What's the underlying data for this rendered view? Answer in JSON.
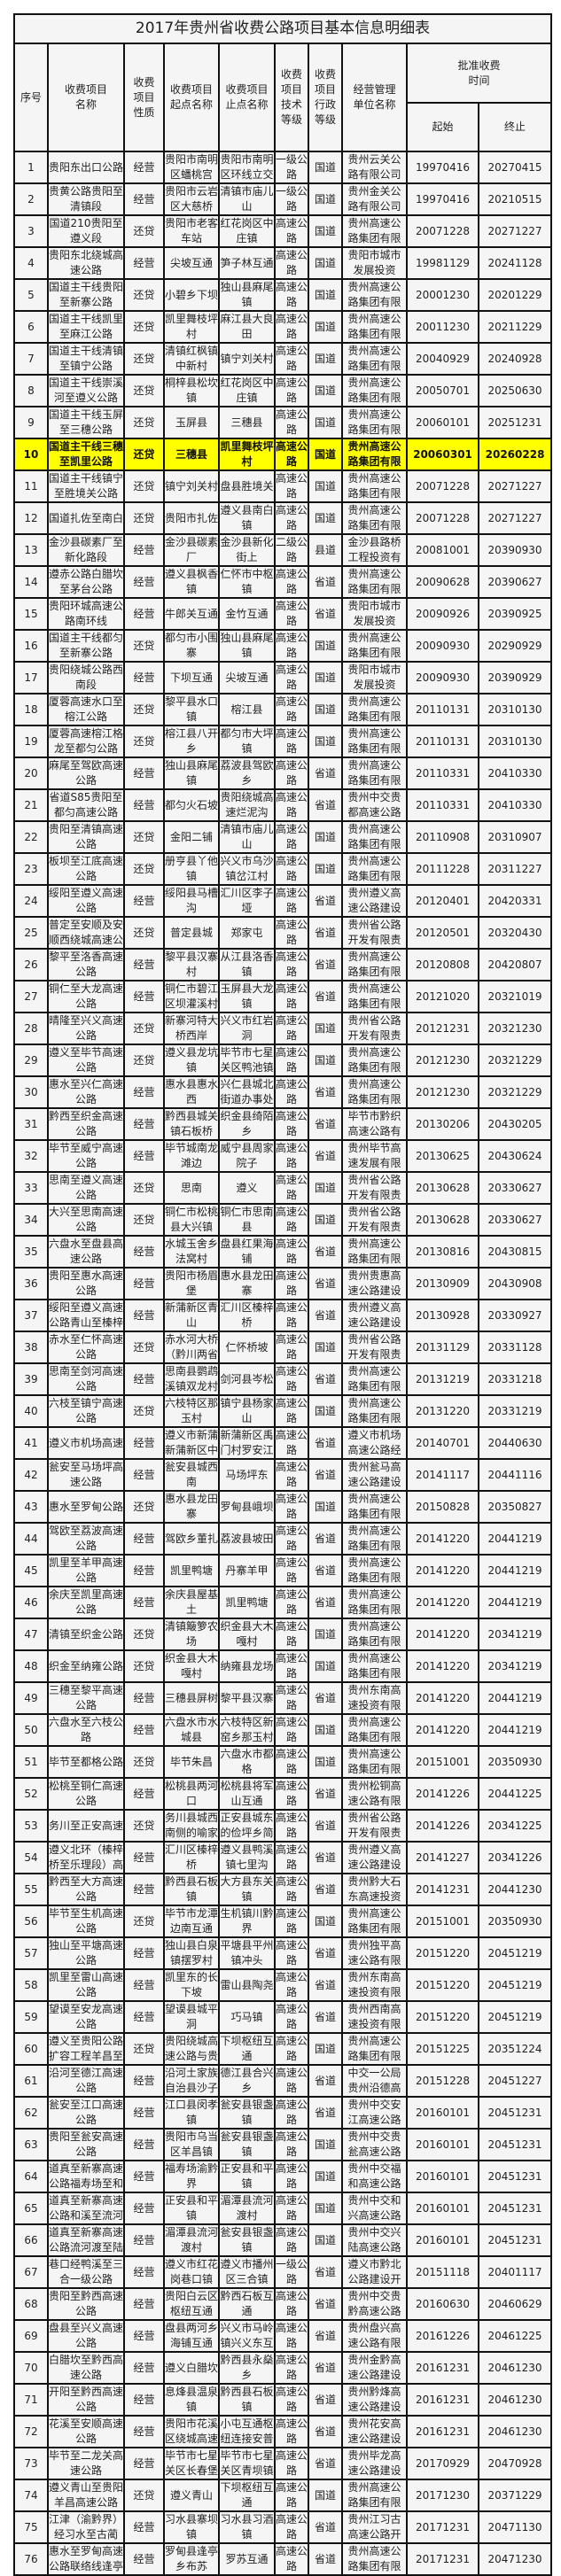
{
  "title": "2017年贵州省收费公路项目基本信息明细表",
  "headers": {
    "no": "序号",
    "name": "收费项目\n名称",
    "nature": "收费\n项目\n性质",
    "start": "收费项目\n起点名称",
    "end": "收费项目\n止点名称",
    "grade": "收费\n项目\n技术\n等级",
    "admin": "收费\n项目\n行政\n等级",
    "operator": "经营管理\n单位名称",
    "period": "批准收费\n时间",
    "period_start": "起始",
    "period_end": "终止"
  },
  "highlight_color": "#ffff00",
  "highlighted_row": "10",
  "rows": [
    [
      "1",
      "贵阳东出口公路",
      "经营",
      "贵阳市南明区蟠桃宫",
      "贵阳市南明区环线立交",
      "一级公路",
      "国道",
      "贵州云关公路有限公司",
      "19970416",
      "20270415"
    ],
    [
      "2",
      "贵黄公路贵阳至清镇段",
      "经营",
      "贵阳市云岩区大慈桥",
      "清镇市庙儿山",
      "一级公路",
      "国道",
      "贵州金关公路有限公司",
      "19970416",
      "20210515"
    ],
    [
      "3",
      "国道210贵阳至遵义段",
      "还贷",
      "贵阳市老客车站",
      "红花岗区中庄镇",
      "高速公路",
      "国道",
      "贵州高速公路集团有限",
      "20071228",
      "20271227"
    ],
    [
      "4",
      "贵阳东北绕城高速公路",
      "经营",
      "尖坡互通",
      "笋子林互通",
      "高速公路",
      "国道",
      "贵阳市城市发展投资",
      "19981129",
      "20241128"
    ],
    [
      "5",
      "国道主干线贵阳至新寨公路",
      "还贷",
      "小碧乡下坝",
      "独山县麻尾镇",
      "高速公路",
      "国道",
      "贵州高速公路集团有限",
      "20001230",
      "20201229"
    ],
    [
      "6",
      "国道主干线凯里至麻江公路",
      "还贷",
      "凯里舞枝坪村",
      "麻江县大良田",
      "高速公路",
      "国道",
      "贵州高速公路集团有限",
      "20011230",
      "20211229"
    ],
    [
      "7",
      "国道主干线清镇至镇宁公路",
      "还贷",
      "清镇红枫镇中新村",
      "镇宁刘关村",
      "高速公路",
      "国道",
      "贵州高速公路集团有限",
      "20040929",
      "20240928"
    ],
    [
      "8",
      "国道主干线崇溪河至遵义公路",
      "还贷",
      "桐梓县松坎镇",
      "红花岗区中庄镇",
      "高速公路",
      "国道",
      "贵州高速公路集团有限",
      "20050701",
      "20250630"
    ],
    [
      "9",
      "国道主干线玉屏至三穗公路",
      "还贷",
      "玉屏县",
      "三穗县",
      "高速公路",
      "国道",
      "贵州高速公路集团有限",
      "20060101",
      "20251231"
    ],
    [
      "10",
      "国道主干线三穗至凯里公路",
      "还贷",
      "三穗县",
      "凯里舞枝坪村",
      "高速公路",
      "国道",
      "贵州高速公路集团有限",
      "20060301",
      "20260228"
    ],
    [
      "11",
      "国道主干线镇宁至胜境关公路",
      "还贷",
      "镇宁刘关村",
      "盘县胜境关",
      "高速公路",
      "国道",
      "贵州高速公路集团有限",
      "20071228",
      "20271227"
    ],
    [
      "12",
      "国道扎佐至南白",
      "还贷",
      "贵阳市扎佐",
      "遵义县南白镇",
      "高速公路",
      "国道",
      "贵州高速公路集团有限",
      "20071228",
      "20271227"
    ],
    [
      "13",
      "金沙县碳素厂至新化路段",
      "经营",
      "金沙县碳素厂",
      "金沙县新化街上",
      "二级公路",
      "县道",
      "金沙县路桥工程投资有",
      "20081001",
      "20390930"
    ],
    [
      "14",
      "遵赤公路白腊坎至茅台公路",
      "经营",
      "遵义县枫香镇",
      "仁怀市中枢镇",
      "高速公路",
      "省道",
      "贵州高速公路集团有限",
      "20090628",
      "20390627"
    ],
    [
      "15",
      "贵阳环城高速公路南环线",
      "经营",
      "牛郎关互通",
      "金竹互通",
      "高速公路",
      "省道",
      "贵阳市城市发展投资",
      "20090926",
      "20390925"
    ],
    [
      "16",
      "国道主干线都匀至新寨公路",
      "还贷",
      "都匀市小围寨",
      "独山县麻尾镇",
      "高速公路",
      "国道",
      "贵州高速公路集团有限",
      "20090930",
      "20290929"
    ],
    [
      "17",
      "贵阳绕城公路西南段",
      "经营",
      "下坝互通",
      "尖坡互通",
      "高速公路",
      "国道",
      "贵阳市城市发展投资",
      "20090930",
      "20390929"
    ],
    [
      "18",
      "厦蓉高速水口至榕江公路",
      "还贷",
      "黎平县水口镇",
      "榕江县",
      "高速公路",
      "国道",
      "贵州高速公路集团有限",
      "20110131",
      "20310130"
    ],
    [
      "19",
      "厦蓉高速榕江格龙至都匀公路",
      "还贷",
      "榕江县八开乡",
      "都匀市大坪镇",
      "高速公路",
      "国道",
      "贵州高速公路集团有限",
      "20110131",
      "20310130"
    ],
    [
      "20",
      "麻尾至驾欧高速公路",
      "经营",
      "独山县麻尾镇",
      "荔波县驾欧乡",
      "高速公路",
      "省道",
      "贵州高速公路集团有限",
      "20110331",
      "20410330"
    ],
    [
      "21",
      "省道S85贵阳至都匀高速公路",
      "经营",
      "都匀火石坡",
      "贵阳绕城高速烂泥沟",
      "高速公路",
      "省道",
      "贵州中交贵都高速公路",
      "20110331",
      "20410330"
    ],
    [
      "22",
      "贵阳至清镇高速公路",
      "还贷",
      "金阳二铺",
      "清镇市庙儿山",
      "高速公路",
      "国道",
      "贵州高速公路集团有限",
      "20110908",
      "20310907"
    ],
    [
      "23",
      "板坝至江底高速公路",
      "还贷",
      "册亨县丫他镇",
      "兴义市乌沙镇岔江村",
      "高速公路",
      "国道",
      "贵州高速公路集团有限",
      "20111228",
      "20311227"
    ],
    [
      "24",
      "绥阳至遵义高速公路",
      "经营",
      "绥阳县马槽沟",
      "汇川区李子垭",
      "高速公路",
      "省道",
      "贵州遵义高速公路建设",
      "20120401",
      "20420331"
    ],
    [
      "25",
      "普定至安顺及安顺西绕城高速公",
      "还贷",
      "普定县城",
      "郑家屯",
      "高速公路",
      "省道",
      "贵州省公路开发有限责",
      "20120501",
      "20320430"
    ],
    [
      "26",
      "黎平至洛香高速公路",
      "经营",
      "黎平县汉寨村",
      "从江县洛香镇",
      "高速公路",
      "省道",
      "贵州高速公路集团有限",
      "20120808",
      "20420807"
    ],
    [
      "27",
      "铜仁至大龙高速公路",
      "经营",
      "铜仁市碧江区坝灌溪村",
      "玉屏县大龙镇",
      "高速公路",
      "省道",
      "贵州高速公路集团有限",
      "20121020",
      "20321019"
    ],
    [
      "28",
      "晴隆至兴义高速公路",
      "还贷",
      "新寨河特大桥西岸",
      "兴义市红岩洞",
      "高速公路",
      "国道",
      "贵州省公路开发有限责",
      "20121231",
      "20321230"
    ],
    [
      "29",
      "遵义至毕节高速公路",
      "还贷",
      "遵义县龙坑镇",
      "毕节市七星关区鸭池镇",
      "高速公路",
      "国道",
      "贵州高速公路集团有限",
      "20121230",
      "20321229"
    ],
    [
      "30",
      "惠水至兴仁高速公路",
      "经营",
      "惠水县惠水西",
      "兴仁县城北街道办事处",
      "高速公路",
      "省道",
      "贵州高速公路集团有限",
      "20121230",
      "20321229"
    ],
    [
      "31",
      "黔西至织金高速公路",
      "经营",
      "黔西县城关镇石板桥",
      "织金县绮陌乡",
      "高速公路",
      "省道",
      "毕节市黔织高速公路有",
      "20130206",
      "20430205"
    ],
    [
      "32",
      "毕节至威宁高速公路",
      "经营",
      "毕节城南龙滩边",
      "威宁县周家院子",
      "高速公路",
      "省道",
      "贵州毕节高速发展有限",
      "20130625",
      "20430624"
    ],
    [
      "33",
      "思南至遵义高速公路",
      "还贷",
      "思南",
      "遵义",
      "高速公路",
      "国道",
      "贵州省公路开发有限责",
      "20130628",
      "20330627"
    ],
    [
      "34",
      "大兴至思南高速公路",
      "还贷",
      "铜仁市松桃县大兴镇",
      "铜仁市思南县",
      "高速公路",
      "国道",
      "贵州省公路开发有限责",
      "20130628",
      "20330627"
    ],
    [
      "35",
      "六盘水至盘县高速公路",
      "经营",
      "水城玉舍乡法窝村",
      "盘县红果海铺",
      "高速公路",
      "省道",
      "贵州高速公路集团有限",
      "20130816",
      "20430815"
    ],
    [
      "36",
      "贵阳至惠水高速公路",
      "经营",
      "贵阳市杨眉堡",
      "惠水县龙田寨",
      "高速公路",
      "省道",
      "贵州贵惠高速公路建设",
      "20130909",
      "20430908"
    ],
    [
      "37",
      "绥阳至遵义高速公路青山至榛梓",
      "经营",
      "新蒲新区青山",
      "汇川区榛梓桥",
      "高速公路",
      "省道",
      "贵州遵义高速公路建设",
      "20130928",
      "20330927"
    ],
    [
      "38",
      "赤水至仁怀高速公路",
      "还贷",
      "赤水河大桥（黔川两省",
      "仁怀桥坡",
      "高速公路",
      "国道",
      "贵州省公路开发有限责",
      "20131129",
      "20331128"
    ],
    [
      "39",
      "思南至剑河高速公路",
      "经营",
      "思南县鹦鹉溪镇双龙村",
      "剑河县岑松",
      "高速公路",
      "省道",
      "贵州高速公路集团有限",
      "20131219",
      "20331218"
    ],
    [
      "40",
      "六枝至镇宁高速公路",
      "还贷",
      "六枝特区那玉村",
      "镇宁县杨家山",
      "高速公路",
      "国道",
      "贵州高速公路集团有限",
      "20131220",
      "20331219"
    ],
    [
      "41",
      "遵义市机场高速",
      "经营",
      "遵义市新蒲新蒲新区中",
      "新蒲新区禹门村罗安江",
      "高速公路",
      "省道",
      "遵义市机场高速公路经",
      "20140701",
      "20440630"
    ],
    [
      "42",
      "瓮安至马场坪高速公路",
      "经营",
      "瓮安县城西南",
      "马场坪东",
      "高速公路",
      "省道",
      "贵州瓮马高速公路建设",
      "20141117",
      "20441116"
    ],
    [
      "43",
      "惠水至罗甸公路",
      "还贷",
      "惠水县龙田寨",
      "罗甸县峨坝",
      "高速公路",
      "国道",
      "贵州高速公路集团有限",
      "20150828",
      "20350827"
    ],
    [
      "44",
      "驾欧至荔波高速公路",
      "经营",
      "驾欧乡董扎",
      "荔波县坡田",
      "高速公路",
      "省道",
      "贵州高速公路集团有限",
      "20141220",
      "20441219"
    ],
    [
      "45",
      "凯里至羊甲高速公路",
      "经营",
      "凯里鸭塘",
      "丹寨羊甲",
      "高速公路",
      "省道",
      "贵州高速公路集团有限",
      "20141220",
      "20441219"
    ],
    [
      "46",
      "余庆至凯里高速公路",
      "经营",
      "余庆县屋基土",
      "凯里鸭塘",
      "高速公路",
      "省道",
      "贵州高速公路集团有限",
      "20141220",
      "20441219"
    ],
    [
      "47",
      "清镇至织金公路",
      "还贷",
      "清镇簸箩农场",
      "织金县大木嘎村",
      "高速公路",
      "国道",
      "贵州高速公路集团有限",
      "20141220",
      "20341219"
    ],
    [
      "48",
      "织金至纳雍公路",
      "还贷",
      "织金县大木嘎村",
      "纳雍县龙场",
      "高速公路",
      "国道",
      "贵州高速公路集团有限",
      "20141220",
      "20341219"
    ],
    [
      "49",
      "三穗至黎平高速公路",
      "经营",
      "三穗县屏树",
      "黎平县汉寨",
      "高速公路",
      "省道",
      "贵州东南高速投资有限",
      "20141220",
      "20441219"
    ],
    [
      "50",
      "六盘水至六枝公路",
      "经营",
      "六盘水市水城县",
      "六枝特区新窑乡那玉村",
      "高速公路",
      "国道",
      "贵州高速公路集团有限",
      "20141220",
      "20441219"
    ],
    [
      "51",
      "毕节至都格公路",
      "还贷",
      "毕节朱昌",
      "六盘水市都格",
      "高速公路",
      "国道",
      "贵州高速公路集团有限",
      "20151001",
      "20350930"
    ],
    [
      "52",
      "松桃至铜仁高速公路",
      "经营",
      "松桃县两河口",
      "松桃县将军山互通",
      "高速公路",
      "省道",
      "贵州松铜高速公路有限",
      "20141226",
      "20441225"
    ],
    [
      "53",
      "务川至正安高速",
      "还贷",
      "务川县城西南侧的喻家",
      "正安县城东的俭坪乡简",
      "高速公路",
      "省道",
      "贵州省公路开发有限责",
      "20141226",
      "20341225"
    ],
    [
      "54",
      "遵义北环（榛梓桥至乐理段）高",
      "经营",
      "汇川区榛梓桥",
      "遵义县鸭溪镇七里沟",
      "高速公路",
      "省道",
      "贵州遵义高速公路建设",
      "20141227",
      "20341226"
    ],
    [
      "55",
      "黔西至大方高速公路",
      "经营",
      "黔西县石板镇",
      "大方县东关镇",
      "高速公路",
      "省道",
      "贵州黔大石东高速投资",
      "20141231",
      "20441230"
    ],
    [
      "56",
      "毕节至生机高速公路",
      "还贷",
      "毕节市龙潭边南互通",
      "生机镇川黔界",
      "高速公路",
      "国道",
      "贵州高速公路集团有限",
      "20151001",
      "20350930"
    ],
    [
      "57",
      "独山至平塘高速公路",
      "经营",
      "独山县白泉镇摆罗村",
      "平塘县平州镇冲头",
      "高速公路",
      "省道",
      "贵州独平高速公路有限",
      "20151220",
      "20451219"
    ],
    [
      "58",
      "凯里至雷山高速公路",
      "经营",
      "凯里东的长下坡",
      "雷山县陶尧",
      "高速公路",
      "省道",
      "贵州东南高速投资有限",
      "20151220",
      "20451219"
    ],
    [
      "59",
      "望谟至安龙高速公路",
      "经营",
      "望谟县城平洞",
      "巧马镇",
      "高速公路",
      "省道",
      "贵州西南高速投资有限",
      "20151220",
      "20451219"
    ],
    [
      "60",
      "遵义至贵阳公路扩容工程羊昌至",
      "还贷",
      "贵阳绕城高速公路与贵",
      "下坝枢纽互通",
      "高速公路",
      "国道",
      "贵州高速公路集团有限",
      "20151225",
      "20351224"
    ],
    [
      "61",
      "沿河至德江高速公路",
      "经营",
      "沿河土家族自治县沙子",
      "德江县合兴乡",
      "高速公路",
      "省道",
      "中交一公局贵州沿德高",
      "20151228",
      "20451227"
    ],
    [
      "62",
      "瓮安至江口高速公路",
      "经营",
      "江口县闵孝镇",
      "瓮安县银盏镇",
      "高速公路",
      "省道",
      "贵州中交安江高速公路",
      "20160101",
      "20451231"
    ],
    [
      "63",
      "贵阳至瓮安高速公路",
      "经营",
      "贵阳市乌当区羊昌镇",
      "瓮安县银盏镇",
      "高速公路",
      "国道",
      "贵州中交贵瓮高速公路",
      "20160101",
      "20451231"
    ],
    [
      "64",
      "道真至新寨高速公路福寿场至和",
      "经营",
      "福寿场渝黔界",
      "正安县和平镇",
      "高速公路",
      "国道",
      "贵州中交福和高速公路",
      "20160101",
      "20451231"
    ],
    [
      "65",
      "道真至新寨高速公路和溪至流河",
      "经营",
      "正安县和平镇",
      "湄潭县流河渡村",
      "高速公路",
      "国道",
      "贵州中交和兴高速公路",
      "20160101",
      "20451231"
    ],
    [
      "66",
      "道真至新寨高速公路流河渡至陆",
      "经营",
      "湄潭县流河渡村",
      "瓮安县银盏镇",
      "高速公路",
      "国道",
      "贵州中交兴陆高速公路",
      "20160101",
      "20451231"
    ],
    [
      "67",
      "巷口经鸭溪至三合一级公路",
      "经营",
      "遵义市红花岗巷口镇",
      "遵义市播州区三合镇",
      "一级公路",
      "省道",
      "遵义市黔北公路建设开",
      "20151118",
      "20401117"
    ],
    [
      "68",
      "贵阳至黔西高速公路",
      "经营",
      "贵阳白云区枢纽互通",
      "黔西石板互通",
      "高速公路",
      "省道",
      "贵州中交贵黔高速公路",
      "20160630",
      "20460629"
    ],
    [
      "69",
      "盘县至兴义高速公路",
      "经营",
      "盘县两河乡海铺互通",
      "兴义市马岭镇兴义东互",
      "高速公路",
      "省道",
      "贵州盘兴高速公路有限",
      "20161226",
      "20461225"
    ],
    [
      "70",
      "白腊坎至黔西高速公路",
      "经营",
      "遵义白腊坎",
      "黔西县永燊乡",
      "高速公路",
      "省道",
      "贵州金黔高速公路建设",
      "20161231",
      "20461230"
    ],
    [
      "71",
      "开阳至黔西高速公路",
      "经营",
      "息烽县温泉镇",
      "黔西县石板镇",
      "高速公路",
      "省道",
      "贵州黔烽高速公路建设",
      "20161231",
      "20461230"
    ],
    [
      "72",
      "花溪至安顺高速公路",
      "经营",
      "贵阳市花溪区绕城高速",
      "小屯互通枢纽连接安普",
      "高速公路",
      "省道",
      "贵州花安高速公路建设",
      "20161231",
      "20461230"
    ],
    [
      "73",
      "毕节至二龙关高速公路",
      "经营",
      "毕节市七星关区长春堡",
      "毕节市七星关区青坝镇",
      "高速公路",
      "省道",
      "贵州毕龙高速公路建设",
      "20170929",
      "20470928"
    ],
    [
      "74",
      "遵义青山至贵阳羊昌高速公路",
      "还贷",
      "遵义青山",
      "下坝枢纽互通",
      "高速公路",
      "国道",
      "贵州高速公路集团有限",
      "20171230",
      "20371229"
    ],
    [
      "75",
      "江津（渝黔界）经习水至古蔺",
      "经营",
      "习水县寨坝镇",
      "习水县习酒镇",
      "高速公路",
      "省道",
      "贵州江习古高速公路开",
      "20171231",
      "20471130"
    ],
    [
      "76",
      "惠水至罗甸高速公路联络线逢亭",
      "经营",
      "罗甸县逢亭乡布苏",
      "罗苏互通",
      "高速公路",
      "省道",
      "贵州高速公路集团有限",
      "20171231",
      "20471230"
    ]
  ]
}
